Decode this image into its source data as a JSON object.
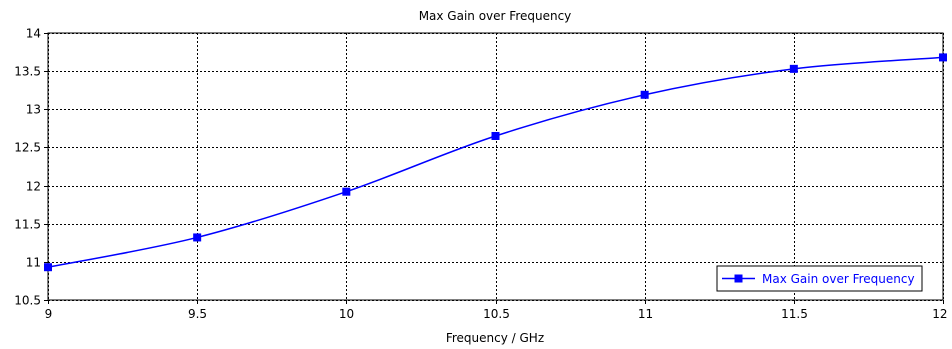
{
  "chart_data": {
    "type": "line",
    "title": "Max Gain over Frequency",
    "xlabel": "Frequency / GHz",
    "ylabel": "",
    "xlim": [
      9,
      12
    ],
    "ylim": [
      10.5,
      14
    ],
    "x_ticks": [
      "9",
      "9.5",
      "10",
      "10.5",
      "11",
      "11.5",
      "12"
    ],
    "y_ticks": [
      "10.5",
      "11",
      "11.5",
      "12",
      "12.5",
      "13",
      "13.5",
      "14"
    ],
    "grid": true,
    "legend_position": "bottom-right",
    "series": [
      {
        "name": "Max Gain over Frequency",
        "color": "#0000ff",
        "marker": "square",
        "x": [
          9,
          9.5,
          10,
          10.5,
          11,
          11.5,
          12
        ],
        "y": [
          10.93,
          11.32,
          11.92,
          12.65,
          13.19,
          13.53,
          13.68
        ]
      }
    ]
  }
}
